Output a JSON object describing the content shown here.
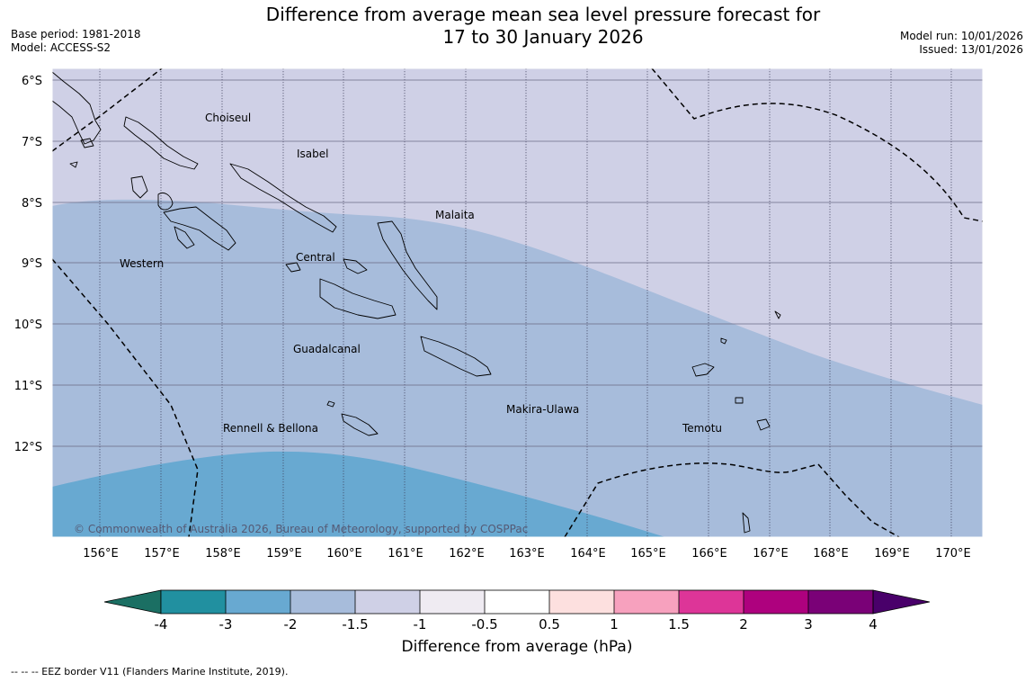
{
  "header": {
    "title_line1": "Difference from average mean sea level pressure forecast for",
    "title_line2": "17 to 30 January 2026",
    "base_period": "Base period: 1981-2018",
    "model": "Model: ACCESS-S2",
    "model_run": "Model run: 10/01/2026",
    "issued": "Issued: 13/01/2026"
  },
  "map": {
    "lat_labels": [
      "6°S",
      "7°S",
      "8°S",
      "9°S",
      "10°S",
      "11°S",
      "12°S"
    ],
    "lon_labels": [
      "156°E",
      "157°E",
      "158°E",
      "159°E",
      "160°E",
      "161°E",
      "162°E",
      "163°E",
      "164°E",
      "165°E",
      "166°E",
      "167°E",
      "168°E",
      "169°E",
      "170°E"
    ],
    "provinces": [
      "Choiseul",
      "Isabel",
      "Malaita",
      "Western",
      "Central",
      "Guadalcanal",
      "Makira-Ulawa",
      "Rennell & Bellona",
      "Temotu"
    ],
    "copyright": "© Commonwealth of Australia 2026, Bureau of Meteorology, supported by COSPPac",
    "fill_colors": {
      "band_minus1_5_to_minus1": "#cfd0e6",
      "band_minus2_to_minus1_5": "#a7bcdb",
      "band_minus3_to_minus2": "#68a9d1"
    }
  },
  "colorbar": {
    "ticks": [
      "-4",
      "-3",
      "-2",
      "-1.5",
      "-1",
      "-0.5",
      "0.5",
      "1",
      "1.5",
      "2",
      "3",
      "4"
    ],
    "colors": [
      "#1b6f63",
      "#2190a0",
      "#68a9d1",
      "#a7bcdb",
      "#cfd0e6",
      "#efebf2",
      "#ffffff",
      "#fde0df",
      "#f7a1be",
      "#dd3598",
      "#ae017e",
      "#7a0177",
      "#49006a"
    ],
    "label": "Difference from average (hPa)"
  },
  "footnote": "--  --  -- EEZ border V11 (Flanders Marine Institute, 2019)."
}
